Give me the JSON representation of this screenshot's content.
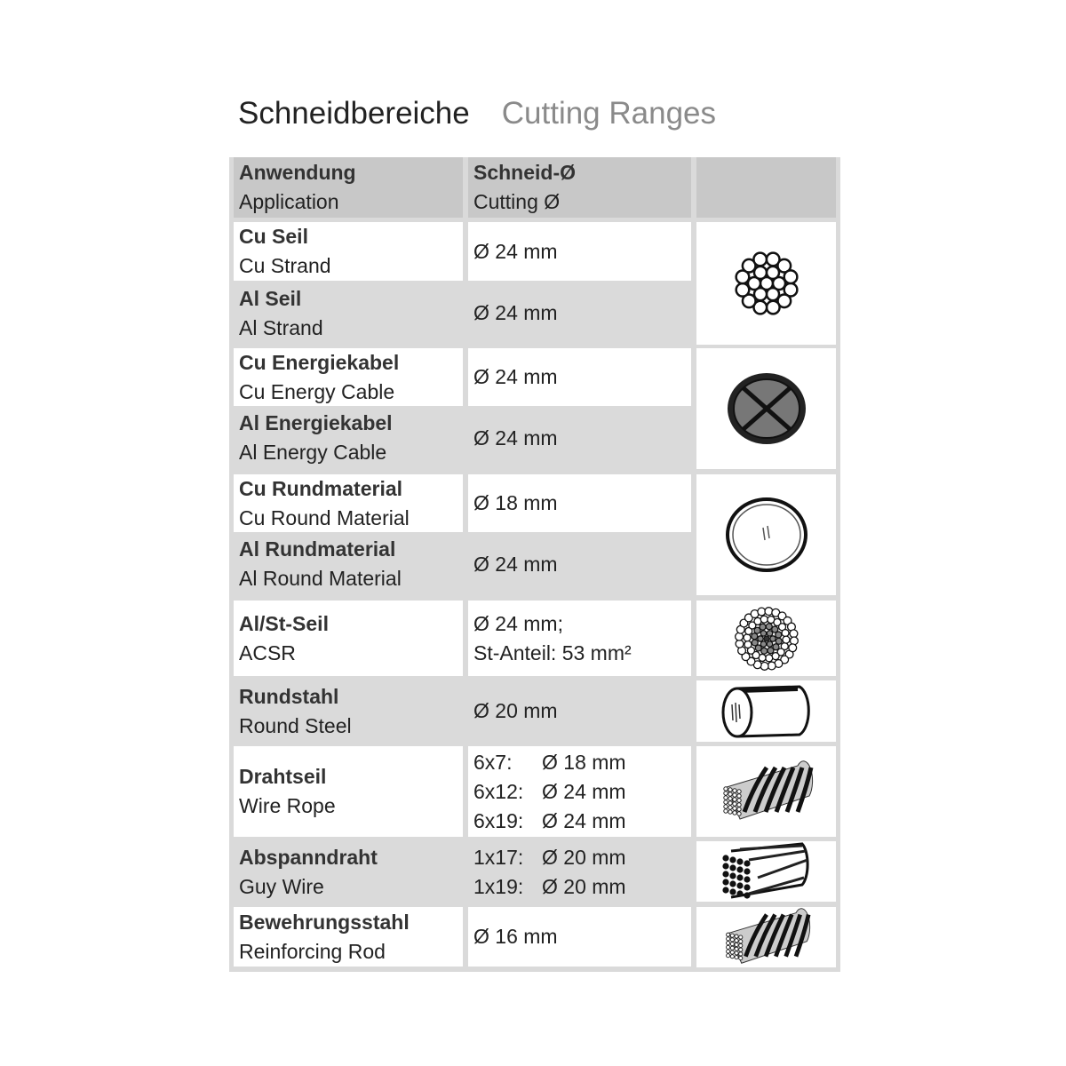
{
  "title": {
    "de": "Schneidbereiche",
    "en": "Cutting Ranges"
  },
  "header": {
    "application_de": "Anwendung",
    "application_en": "Application",
    "cutting_de": "Schneid-Ø",
    "cutting_en": "Cutting Ø"
  },
  "rows": [
    {
      "de": "Cu Seil",
      "en": "Cu Strand",
      "value": "Ø 24 mm"
    },
    {
      "de": "Al Seil",
      "en": "Al Strand",
      "value": "Ø 24 mm"
    },
    {
      "de": "Cu Energiekabel",
      "en": "Cu Energy Cable",
      "value": "Ø 24 mm"
    },
    {
      "de": "Al Energiekabel",
      "en": "Al Energy Cable",
      "value": "Ø 24 mm"
    },
    {
      "de": "Cu Rundmaterial",
      "en": "Cu Round Material",
      "value": "Ø 18 mm"
    },
    {
      "de": "Al Rundmaterial",
      "en": "Al Round Material",
      "value": "Ø 24 mm"
    },
    {
      "de": "Al/St-Seil",
      "en": "ACSR",
      "value": "Ø 24 mm;",
      "value2": "St-Anteil: 53 mm²"
    },
    {
      "de": "Rundstahl",
      "en": "Round Steel",
      "value": "Ø 20 mm"
    },
    {
      "de": "Drahtseil",
      "en": "Wire Rope",
      "specs": [
        {
          "k": "6x7:",
          "v": "Ø 18 mm"
        },
        {
          "k": "6x12:",
          "v": "Ø 24 mm"
        },
        {
          "k": "6x19:",
          "v": "Ø 24 mm"
        }
      ]
    },
    {
      "de": "Abspanndraht",
      "en": "Guy Wire",
      "specs": [
        {
          "k": "1x17:",
          "v": "Ø 20 mm"
        },
        {
          "k": "1x19:",
          "v": "Ø 20 mm"
        }
      ]
    },
    {
      "de": "Bewehrungsstahl",
      "en": "Reinforcing Rod",
      "value": "Ø 16 mm"
    }
  ],
  "icons": [
    "strand-cross-section-icon",
    "energy-cable-icon",
    "round-material-icon",
    "acsr-cross-section-icon",
    "round-steel-icon",
    "wire-rope-icon",
    "guy-wire-icon",
    "reinforcing-rod-icon"
  ],
  "colors": {
    "header_bg": "#c8c8c8",
    "table_bg": "#dadada",
    "cell_bg": "#ffffff"
  }
}
